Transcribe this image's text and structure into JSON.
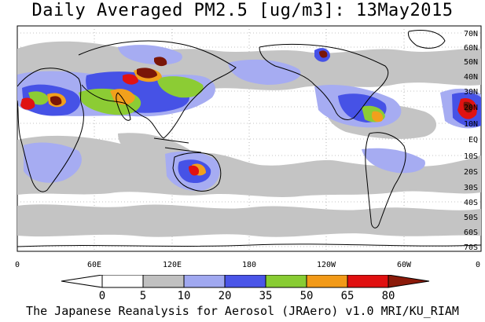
{
  "title": "Daily Averaged PM2.5 [ug/m3]: 13May2015",
  "footer": "The Japanese Reanalysis for Aerosol (JRAero) v1.0 MRI/KU_RIAM",
  "lat_ticks": [
    "70N",
    "60N",
    "50N",
    "40N",
    "30N",
    "20N",
    "10N",
    "EQ",
    "10S",
    "20S",
    "30S",
    "40S",
    "50S",
    "60S",
    "70S"
  ],
  "lon_ticks": [
    "0",
    "60E",
    "120E",
    "180",
    "120W",
    "60W",
    "0"
  ],
  "colorbar": {
    "labels": [
      "0",
      "5",
      "10",
      "20",
      "35",
      "50",
      "65",
      "80"
    ],
    "colors": [
      "#ffffff",
      "#ffffff",
      "#c0c0c0",
      "#a0a8f0",
      "#4a55e8",
      "#88cc33",
      "#f29a18",
      "#e01010",
      "#8b1a0a"
    ]
  },
  "colors": {
    "land_border": "#000000",
    "gray": "#c4c4c4",
    "lightblue": "#a6acf2",
    "blue": "#4652e6",
    "green": "#8ccc34",
    "orange": "#f2a01c",
    "red": "#e01212",
    "darkred": "#7a1608"
  }
}
